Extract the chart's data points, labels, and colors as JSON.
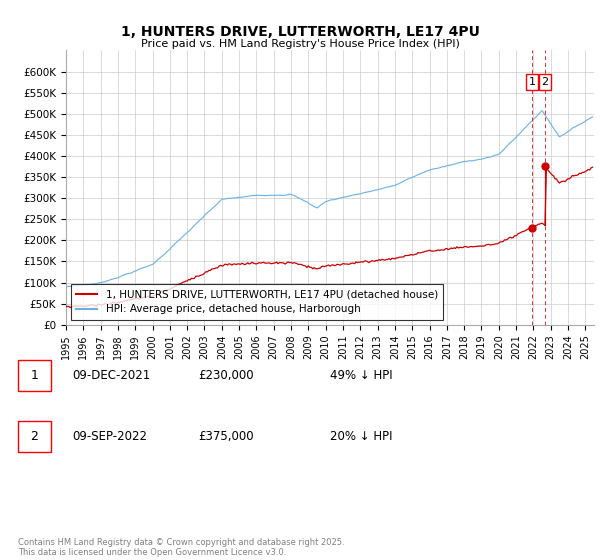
{
  "title": "1, HUNTERS DRIVE, LUTTERWORTH, LE17 4PU",
  "subtitle": "Price paid vs. HM Land Registry's House Price Index (HPI)",
  "ylim": [
    0,
    650000
  ],
  "yticks": [
    0,
    50000,
    100000,
    150000,
    200000,
    250000,
    300000,
    350000,
    400000,
    450000,
    500000,
    550000,
    600000
  ],
  "ytick_labels": [
    "£0",
    "£50K",
    "£100K",
    "£150K",
    "£200K",
    "£250K",
    "£300K",
    "£350K",
    "£400K",
    "£450K",
    "£500K",
    "£550K",
    "£600K"
  ],
  "hpi_color": "#6ab0e8",
  "price_color": "#cc0000",
  "sale1_price": 230000,
  "sale2_price": 375000,
  "legend1": "1, HUNTERS DRIVE, LUTTERWORTH, LE17 4PU (detached house)",
  "legend2": "HPI: Average price, detached house, Harborough",
  "footnote": "Contains HM Land Registry data © Crown copyright and database right 2025.\nThis data is licensed under the Open Government Licence v3.0.",
  "table_row1": [
    "1",
    "09-DEC-2021",
    "£230,000",
    "49% ↓ HPI"
  ],
  "table_row2": [
    "2",
    "09-SEP-2022",
    "£375,000",
    "20% ↓ HPI"
  ],
  "background_color": "#ffffff",
  "grid_color": "#cccccc",
  "xlim_start": 1995,
  "xlim_end": 2025.5
}
